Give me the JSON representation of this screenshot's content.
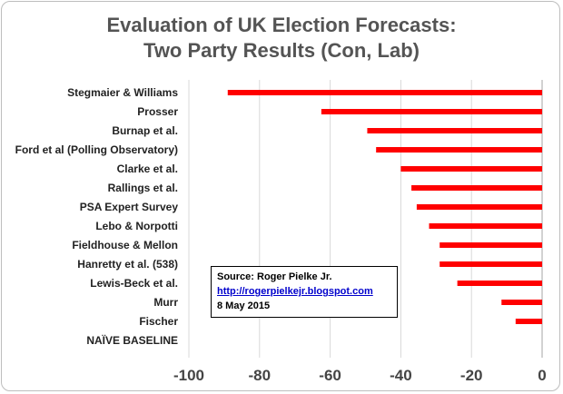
{
  "chart_data": {
    "type": "bar",
    "orientation": "horizontal",
    "title": "Evaluation of UK Election Forecasts:",
    "subtitle": "Two Party Results (Con, Lab)",
    "xlabel": "",
    "ylabel": "",
    "xlim": [
      -100,
      0
    ],
    "xticks": [
      "-100",
      "-80",
      "-60",
      "-40",
      "-20",
      "0"
    ],
    "grid": true,
    "bar_color": "#ff0000",
    "categories": [
      "Stegmaier & Williams",
      "Prosser",
      "Burnap et al.",
      "Ford et al (Polling Observatory)",
      "Clarke et al.",
      "Rallings et al.",
      "PSA Expert Survey",
      "Lebo & Norpotti",
      "Fieldhouse & Mellon",
      "Hanretty et al. (538)",
      "Lewis-Beck et al.",
      "Murr",
      "Fischer",
      "NAÏVE BASELINE"
    ],
    "values": [
      -89,
      -62.5,
      -49.5,
      -47,
      -40,
      -37,
      -35.5,
      -32,
      -29,
      -29,
      -24,
      -11.5,
      -7.5,
      0
    ]
  },
  "source_box": {
    "source": "Source: Roger Pielke Jr.",
    "link": "http://rogerpielkejr.blogspot.com",
    "date": "8 May 2015"
  }
}
